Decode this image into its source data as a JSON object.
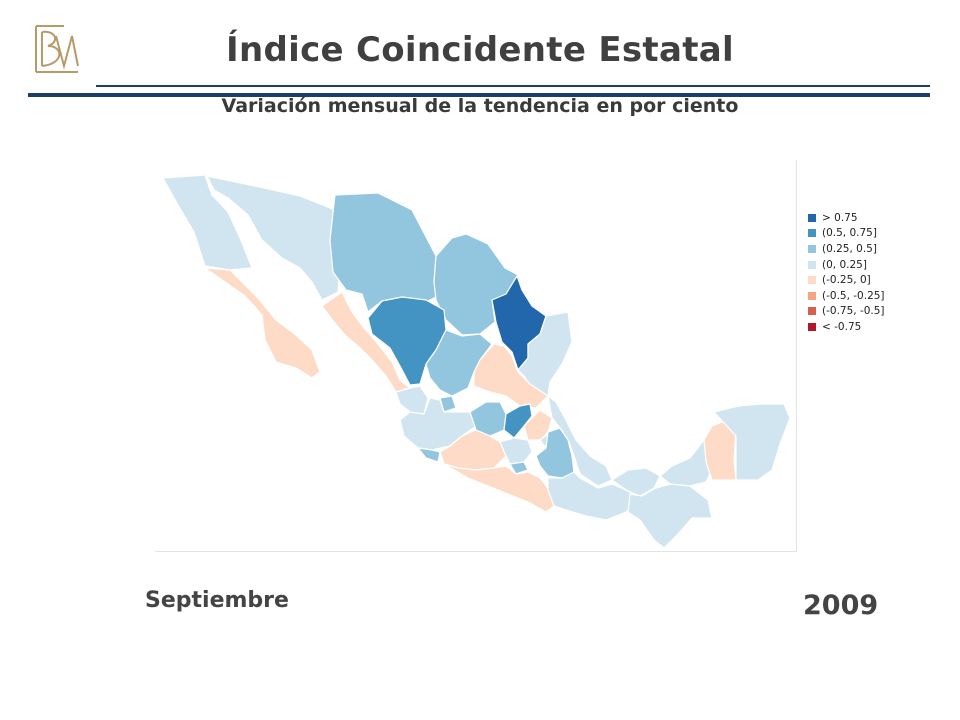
{
  "header": {
    "logo": "BM",
    "title": "Índice Coincidente Estatal",
    "subtitle": "Variación mensual de la tendencia en por ciento"
  },
  "legend": {
    "items": [
      {
        "label": "> 0.75",
        "color": "#2266ac"
      },
      {
        "label": "(0.5,  0.75]",
        "color": "#4393c3"
      },
      {
        "label": "(0.25,  0.5]",
        "color": "#92c5de"
      },
      {
        "label": "(0,  0.25]",
        "color": "#d1e5f0"
      },
      {
        "label": "(-0.25,  0]",
        "color": "#fddbc7"
      },
      {
        "label": "(-0.5,  -0.25]",
        "color": "#f4a582"
      },
      {
        "label": "(-0.75,  -0.5]",
        "color": "#d6604d"
      },
      {
        "label": "< -0.75",
        "color": "#b2182b"
      }
    ]
  },
  "footer": {
    "month": "Septiembre",
    "year": "2009"
  }
}
